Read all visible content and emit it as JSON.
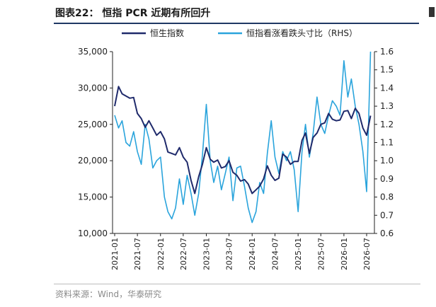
{
  "title": "图表22：  恒指 PCR 近期有所回升",
  "source": "资料来源：Wind，华泰研究",
  "chart_data": {
    "type": "line",
    "legend_position": "top",
    "grid": false,
    "x_range": [
      "2020-12-15",
      "2026-09-01"
    ],
    "x_tick_labels": [
      "2021-01",
      "2021-07",
      "2022-01",
      "2022-07",
      "2023-01",
      "2023-07",
      "2024-01",
      "2024-07",
      "2025-01",
      "2025-07",
      "2026-01",
      "2026-07"
    ],
    "y_left": {
      "range": [
        10000,
        35000
      ],
      "tick_labels": [
        "10,000",
        "15,000",
        "20,000",
        "25,000",
        "30,000",
        "35,000"
      ]
    },
    "y_right": {
      "range": [
        0.6,
        1.6
      ],
      "tick_labels": [
        "0.6",
        "0.7",
        "0.8",
        "0.9",
        "1.0",
        "1.1",
        "1.2",
        "1.3",
        "1.4",
        "1.5",
        "1.6"
      ]
    },
    "series": [
      {
        "name": "恒生指数",
        "axis": "left",
        "color": "#1f2a6b",
        "x": [
          "2021-01-01",
          "2021-02-01",
          "2021-03-01",
          "2021-04-01",
          "2021-05-01",
          "2021-06-01",
          "2021-07-01",
          "2021-08-01",
          "2021-09-01",
          "2021-10-01",
          "2021-11-01",
          "2021-12-01",
          "2022-01-01",
          "2022-02-01",
          "2022-03-01",
          "2022-04-01",
          "2022-05-01",
          "2022-06-01",
          "2022-07-01",
          "2022-08-01",
          "2022-09-01",
          "2022-10-01",
          "2022-11-01",
          "2022-12-01",
          "2023-01-01",
          "2023-02-01",
          "2023-03-01",
          "2023-04-01",
          "2023-05-01",
          "2023-06-01",
          "2023-07-01",
          "2023-08-01",
          "2023-09-01",
          "2023-10-01",
          "2023-11-01",
          "2023-12-01",
          "2024-01-01",
          "2024-02-01",
          "2024-03-01",
          "2024-04-01",
          "2024-05-01",
          "2024-06-01",
          "2024-07-01",
          "2024-08-01",
          "2024-09-01",
          "2024-10-01",
          "2024-11-01",
          "2024-12-01",
          "2025-01-01",
          "2025-02-01",
          "2025-03-01",
          "2025-04-01",
          "2025-05-01",
          "2025-06-01",
          "2025-07-01",
          "2025-08-01",
          "2025-09-01",
          "2025-10-01",
          "2025-11-01",
          "2025-12-01",
          "2026-01-01",
          "2026-02-01",
          "2026-03-01",
          "2026-04-01",
          "2026-05-01",
          "2026-06-01",
          "2026-07-01",
          "2026-08-01"
        ],
        "values": [
          27500,
          30200,
          29200,
          28900,
          28600,
          28700,
          26500,
          25800,
          24600,
          25500,
          24500,
          23500,
          24000,
          23000,
          21200,
          21000,
          20800,
          21800,
          20500,
          19800,
          17300,
          15500,
          17800,
          19500,
          21800,
          20200,
          19800,
          20100,
          19000,
          19200,
          20000,
          18400,
          18000,
          17200,
          17400,
          16800,
          15500,
          16000,
          16500,
          17500,
          19300,
          18000,
          17300,
          17600,
          20900,
          20500,
          19500,
          19900,
          19900,
          22800,
          23800,
          21000,
          23200,
          23800,
          25000,
          25200,
          26500,
          25700,
          25500,
          25600,
          26800,
          26900,
          25800,
          27200,
          26500,
          24500,
          23500,
          26200
        ]
      },
      {
        "name": "恒指看涨看跌头寸比（RHS）",
        "axis": "right",
        "color": "#2aa4dc",
        "x": [
          "2021-01-01",
          "2021-02-01",
          "2021-03-01",
          "2021-04-01",
          "2021-05-01",
          "2021-06-01",
          "2021-07-01",
          "2021-08-01",
          "2021-09-01",
          "2021-10-01",
          "2021-11-01",
          "2021-12-01",
          "2022-01-01",
          "2022-02-01",
          "2022-03-01",
          "2022-04-01",
          "2022-05-01",
          "2022-06-01",
          "2022-07-01",
          "2022-08-01",
          "2022-09-01",
          "2022-10-01",
          "2022-11-01",
          "2022-12-01",
          "2023-01-01",
          "2023-02-01",
          "2023-03-01",
          "2023-04-01",
          "2023-05-01",
          "2023-06-01",
          "2023-07-01",
          "2023-08-01",
          "2023-09-01",
          "2023-10-01",
          "2023-11-01",
          "2023-12-01",
          "2024-01-01",
          "2024-02-01",
          "2024-03-01",
          "2024-04-01",
          "2024-05-01",
          "2024-06-01",
          "2024-07-01",
          "2024-08-01",
          "2024-09-01",
          "2024-10-01",
          "2024-11-01",
          "2024-12-01",
          "2025-01-01",
          "2025-02-01",
          "2025-03-01",
          "2025-04-01",
          "2025-05-01",
          "2025-06-01",
          "2025-07-01",
          "2025-08-01",
          "2025-09-01",
          "2025-10-01",
          "2025-11-01",
          "2025-12-01",
          "2026-01-01",
          "2026-02-01",
          "2026-03-01",
          "2026-04-01",
          "2026-05-01",
          "2026-06-01",
          "2026-07-01",
          "2026-08-01"
        ],
        "values": [
          1.25,
          1.18,
          1.22,
          1.1,
          1.08,
          1.16,
          1.05,
          0.98,
          1.2,
          1.12,
          0.96,
          1.0,
          1.02,
          0.8,
          0.72,
          0.68,
          0.74,
          0.9,
          0.76,
          0.92,
          0.82,
          0.7,
          0.82,
          1.03,
          1.31,
          1.0,
          0.88,
          0.97,
          0.84,
          0.93,
          1.02,
          0.78,
          0.96,
          0.97,
          0.86,
          0.74,
          0.66,
          0.72,
          0.88,
          0.82,
          1.04,
          1.22,
          1.02,
          0.93,
          1.05,
          1.0,
          1.05,
          0.95,
          0.72,
          1.05,
          1.2,
          1.02,
          1.15,
          1.35,
          1.2,
          1.15,
          1.25,
          1.33,
          1.3,
          1.25,
          1.55,
          1.35,
          1.45,
          1.3,
          1.2,
          1.05,
          0.83,
          1.6
        ]
      }
    ]
  }
}
